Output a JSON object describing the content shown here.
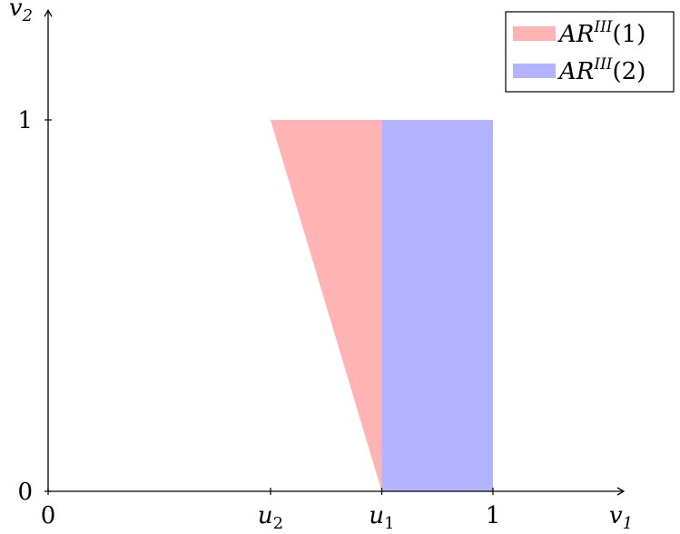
{
  "chart_data": {
    "type": "area",
    "title": "",
    "xlabel": "v1",
    "ylabel": "v2",
    "xlim": [
      0,
      1.3
    ],
    "ylim": [
      0,
      1.3
    ],
    "grid": false,
    "legend_position": "top-right",
    "x_ticks": [
      {
        "value": 0,
        "label": "0"
      },
      {
        "value": 0.5,
        "label": "u2"
      },
      {
        "value": 0.75,
        "label": "u1"
      },
      {
        "value": 1,
        "label": "1"
      }
    ],
    "y_ticks": [
      {
        "value": 0,
        "label": "0"
      },
      {
        "value": 1,
        "label": "1"
      }
    ],
    "series": [
      {
        "name": "AR^III(1)",
        "legend_base": "AR",
        "legend_sup": "III",
        "legend_arg": "(1)",
        "color": "#ffb3b3",
        "polygon": [
          [
            0.75,
            0
          ],
          [
            0.75,
            1
          ],
          [
            0.5,
            1
          ]
        ]
      },
      {
        "name": "AR^III(2)",
        "legend_base": "AR",
        "legend_sup": "III",
        "legend_arg": "(2)",
        "color": "#b3b3ff",
        "polygon": [
          [
            0.75,
            0
          ],
          [
            1,
            0
          ],
          [
            1,
            1
          ],
          [
            0.75,
            1
          ]
        ]
      }
    ]
  }
}
